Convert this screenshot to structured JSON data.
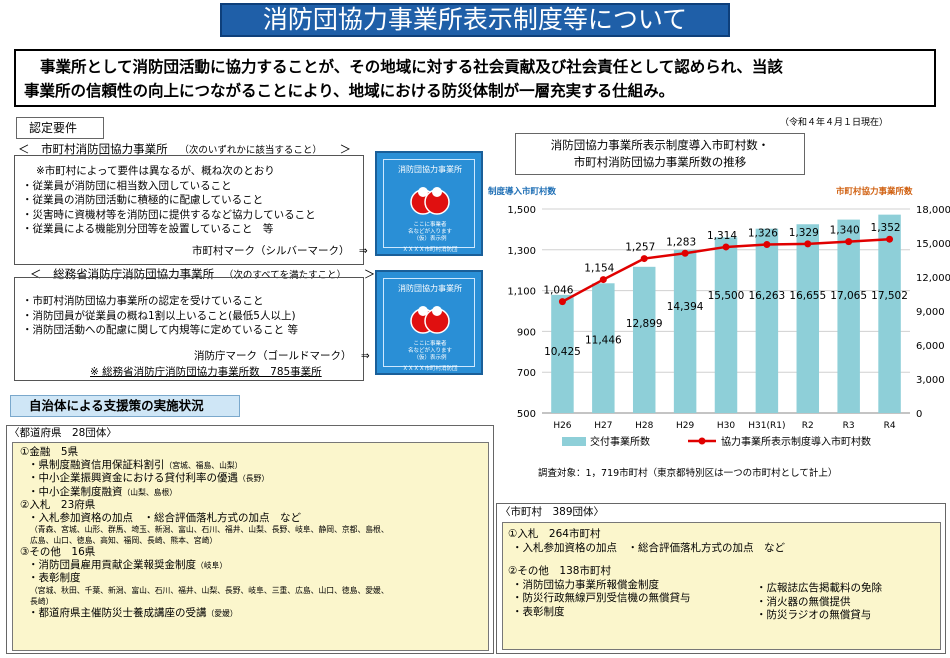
{
  "title": "消防団協力事業所表示制度等について",
  "intro": {
    "line1": "事業所として消防団活動に協力することが、その地域に対する社会貢献及び社会責任として認められ、当該",
    "line2": "事業所の信頼性の向上につながることにより、地域における防災体制が一層充実する仕組み。"
  },
  "as_of": "（令和４年４月１日現在）",
  "requirements": {
    "tag": "認定要件",
    "municipal": {
      "header_open": "＜",
      "header_title": "市町村消防団協力事業所",
      "header_note": "（次のいずれかに該当すること）",
      "header_close": "＞",
      "note": "※市町村によって要件は異なるが、概ね次のとおり",
      "items": [
        "・従業員が消防団に相当数入団していること",
        "・従業員の消防団活動に積極的に配慮していること",
        "・災害時に資機材等を消防団に提供するなど協力していること",
        "・従業員による機能別分団等を設置していること　等"
      ],
      "mark": "市町村マーク（シルバーマーク）",
      "arrow": "⇒"
    },
    "fdma": {
      "header_open": "＜",
      "header_title": "総務省消防庁消防団協力事業所",
      "header_note": "（次のすべてを満たすこと）",
      "header_close": "＞",
      "items": [
        "・市町村消防団協力事業所の認定を受けていること",
        "・消防団員が従業員の概ね1割以上いること(最低5人以上)",
        "・消防団活動への配慮に関して内規等に定めていること 等"
      ],
      "mark": "消防庁マーク（ゴールドマーク）",
      "arrow": "⇒",
      "count": "※ 総務省消防庁消防団協力事業所数　785事業所"
    },
    "badge_top": "消防団協力事業所",
    "badge_bottom": [
      "ここに事業者",
      "名などが入ります",
      "（仮）表示例"
    ],
    "badge_footer": "ＸＸＸＸ市町村消防団"
  },
  "support": {
    "header": "自治体による支援策の実施状況",
    "prefecture": {
      "label": "〈都道府県　28団体〉",
      "finance": {
        "title": "①金融　5県",
        "items": [
          {
            "text": "・県制度融資信用保証料割引",
            "note": "（宮城、福島、山梨）"
          },
          {
            "text": "・中小企業振興資金における貸付利率の優遇",
            "note": "（長野）"
          },
          {
            "text": "・中小企業制度融資",
            "note": "（山梨、島根）"
          }
        ]
      },
      "bidding": {
        "title": "②入札　23府県",
        "item": "・入札参加資格の加点　・総合評価落札方式の加点　など",
        "note1": "（青森、宮城、山形、群馬、埼玉、新潟、富山、石川、福井、山梨、長野、岐阜、静岡、京都、島根、",
        "note2": "広島、山口、徳島、高知、福岡、長崎、熊本、宮崎）"
      },
      "other": {
        "title": "③その他　16県",
        "item1": "・消防団員雇用貢献企業報奨金制度",
        "item1_note": "（岐阜）",
        "item2": "・表彰制度",
        "item2_note1": "（宮城、秋田、千葉、新潟、富山、石川、福井、山梨、長野、岐阜、三重、広島、山口、徳島、愛媛、",
        "item2_note2": "長崎）",
        "item3": "・都道府県主催防災士養成講座の受講",
        "item3_note": "（愛媛）"
      }
    },
    "municipality": {
      "label": "〈市町村　389団体〉",
      "bidding": {
        "title": "①入札　264市町村",
        "item": "・入札参加資格の加点　・総合評価落札方式の加点　など"
      },
      "other": {
        "title": "②その他　138市町村",
        "left": [
          "・消防団協力事業所報償金制度",
          "・防災行政無線戸別受信機の無償貸与",
          "・表彰制度"
        ],
        "right": [
          "・広報誌広告掲載料の免除",
          "・消火器の無償提供",
          "・防災ラジオの無償貸与"
        ]
      }
    }
  },
  "chart_data": {
    "type": "bar",
    "title_line1": "消防団協力事業所表示制度導入市町村数・",
    "title_line2": "市町村消防団協力事業所数の推移",
    "ylabel_left": "制度導入市町村数",
    "ylabel_right": "市町村協力事業所数",
    "categories": [
      "H26",
      "H27",
      "H28",
      "H29",
      "H30",
      "H31(R1)",
      "R2",
      "R3",
      "R4"
    ],
    "series": [
      {
        "name": "交付事業所数",
        "type": "bar",
        "axis": "right",
        "color": "#8ecfd8",
        "values": [
          10425,
          11446,
          12899,
          14394,
          15500,
          16263,
          16655,
          17065,
          17502
        ],
        "labels": [
          "10,425",
          "11,446",
          "12,899",
          "14,394",
          "15,500",
          "16,263",
          "16,655",
          "17,065",
          "17,502"
        ]
      },
      {
        "name": "協力事業所表示制度導入市町村数",
        "type": "line",
        "axis": "left",
        "color": "#e00000",
        "values": [
          1046,
          1154,
          1257,
          1283,
          1314,
          1326,
          1329,
          1340,
          1352
        ],
        "labels": [
          "1,046",
          "1,154",
          "1,257",
          "1,283",
          "1,314",
          "1,326",
          "1,329",
          "1,340",
          "1,352"
        ]
      }
    ],
    "ylim_left": [
      500,
      1500
    ],
    "yticks_left": [
      "1,500",
      "1,300",
      "1,100",
      "900",
      "700",
      "500"
    ],
    "ylim_right": [
      0,
      18000
    ],
    "yticks_right": [
      "18,000",
      "15,000",
      "12,000",
      "9,000",
      "6,000",
      "3,000",
      "0"
    ],
    "grid": true,
    "legend": "bottom",
    "survey_note": "調査対象：1，719市町村（東京都特別区は一つの市町村として計上）"
  }
}
